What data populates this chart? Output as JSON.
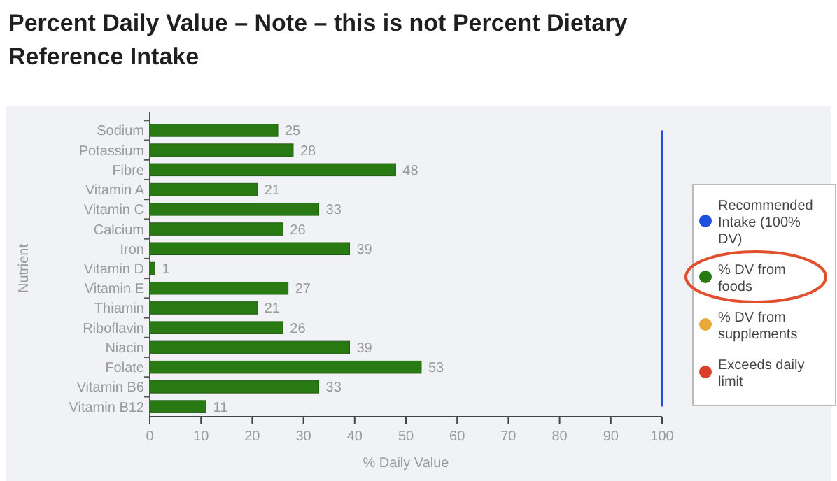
{
  "chart_data": {
    "type": "bar",
    "orientation": "horizontal",
    "title": "Percent Daily Value – Note – this is not Percent Dietary Reference Intake",
    "xlabel": "% Daily Value",
    "ylabel": "Nutrient",
    "categories": [
      "Sodium",
      "Potassium",
      "Fibre",
      "Vitamin A",
      "Vitamin C",
      "Calcium",
      "Iron",
      "Vitamin D",
      "Vitamin E",
      "Thiamin",
      "Riboflavin",
      "Niacin",
      "Folate",
      "Vitamin B6",
      "Vitamin B12"
    ],
    "series": [
      {
        "name": "Recommended Intake (100% DV)",
        "type": "line",
        "color": "#1f4fe0",
        "values": [
          100,
          100,
          100,
          100,
          100,
          100,
          100,
          100,
          100,
          100,
          100,
          100,
          100,
          100,
          100
        ]
      },
      {
        "name": "% DV from foods",
        "color": "#2a7a14",
        "values": [
          25,
          28,
          48,
          21,
          33,
          26,
          39,
          1,
          27,
          21,
          26,
          39,
          53,
          33,
          11
        ],
        "value_labels": [
          "25",
          "28",
          "48",
          "21",
          "33",
          "26",
          "39",
          "1",
          "27",
          "21",
          "26",
          "39",
          "53",
          "33",
          "11"
        ]
      },
      {
        "name": "% DV from supplements",
        "color": "#e8a838",
        "values": [
          null,
          null,
          null,
          null,
          null,
          null,
          null,
          null,
          null,
          null,
          null,
          null,
          null,
          null,
          null
        ]
      },
      {
        "name": "Exceeds daily limit",
        "color": "#d9402b",
        "values": [
          null,
          null,
          null,
          null,
          null,
          null,
          null,
          null,
          null,
          null,
          null,
          null,
          null,
          null,
          null
        ]
      }
    ],
    "xlim": [
      0,
      100
    ],
    "xticks": [
      0,
      10,
      20,
      30,
      40,
      50,
      60,
      70,
      80,
      90,
      100
    ],
    "grid": false,
    "legend": "right"
  }
}
